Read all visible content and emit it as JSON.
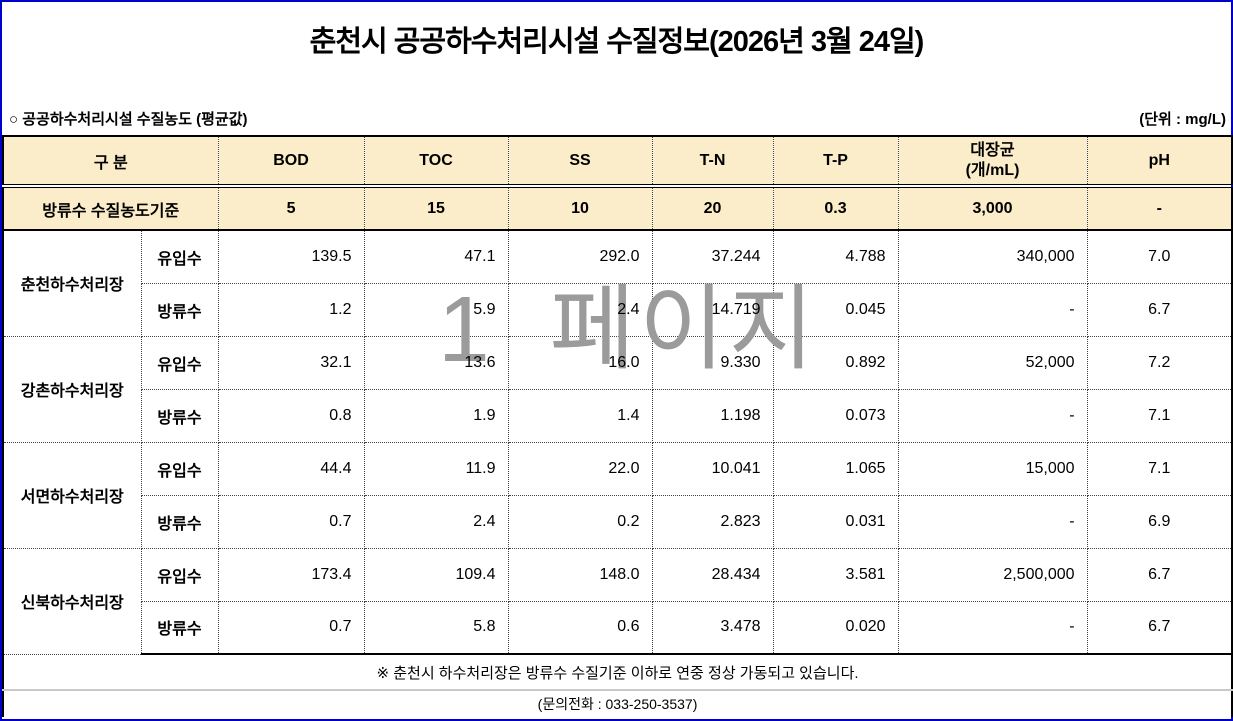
{
  "page": {
    "title": "춘천시 공공하수처리시설 수질정보(2026년 3월 24일)",
    "section_label": "○ 공공하수처리시설 수질농도 (평균값)",
    "unit_label": "(단위 : mg/L)",
    "watermark": "1 페이지"
  },
  "table": {
    "columns": {
      "category": "구  분",
      "bod": "BOD",
      "toc": "TOC",
      "ss": "SS",
      "tn": "T-N",
      "tp": "T-P",
      "coliform_line1": "대장균",
      "coliform_line2": "(개/mL)",
      "ph": "pH"
    },
    "standards": {
      "label": "방류수 수질농도기준",
      "values": [
        "5",
        "15",
        "10",
        "20",
        "0.3",
        "3,000",
        "-"
      ]
    },
    "facilities": [
      {
        "name": "춘천하수처리장",
        "rows": [
          {
            "type": "유입수",
            "values": [
              "139.5",
              "47.1",
              "292.0",
              "37.244",
              "4.788",
              "340,000",
              "7.0"
            ]
          },
          {
            "type": "방류수",
            "values": [
              "1.2",
              "5.9",
              "2.4",
              "14.719",
              "0.045",
              "-",
              "6.7"
            ]
          }
        ]
      },
      {
        "name": "강촌하수처리장",
        "rows": [
          {
            "type": "유입수",
            "values": [
              "32.1",
              "13.6",
              "16.0",
              "9.330",
              "0.892",
              "52,000",
              "7.2"
            ]
          },
          {
            "type": "방류수",
            "values": [
              "0.8",
              "1.9",
              "1.4",
              "1.198",
              "0.073",
              "-",
              "7.1"
            ]
          }
        ]
      },
      {
        "name": "서면하수처리장",
        "rows": [
          {
            "type": "유입수",
            "values": [
              "44.4",
              "11.9",
              "22.0",
              "10.041",
              "1.065",
              "15,000",
              "7.1"
            ]
          },
          {
            "type": "방류수",
            "values": [
              "0.7",
              "2.4",
              "0.2",
              "2.823",
              "0.031",
              "-",
              "6.9"
            ]
          }
        ]
      },
      {
        "name": "신북하수처리장",
        "rows": [
          {
            "type": "유입수",
            "values": [
              "173.4",
              "109.4",
              "148.0",
              "28.434",
              "3.581",
              "2,500,000",
              "6.7"
            ]
          },
          {
            "type": "방류수",
            "values": [
              "0.7",
              "5.8",
              "0.6",
              "3.478",
              "0.020",
              "-",
              "6.7"
            ]
          }
        ]
      }
    ],
    "footnote": "※ 춘천시 하수처리장은 방류수 수질기준 이하로 연중 정상 가동되고 있습니다.",
    "contact": "(문의전화 : 033-250-3537)"
  },
  "colors": {
    "header_bg": "#FBEDC9",
    "frame_blue": "#0000CC",
    "watermark_gray": "#9B9B9B"
  }
}
